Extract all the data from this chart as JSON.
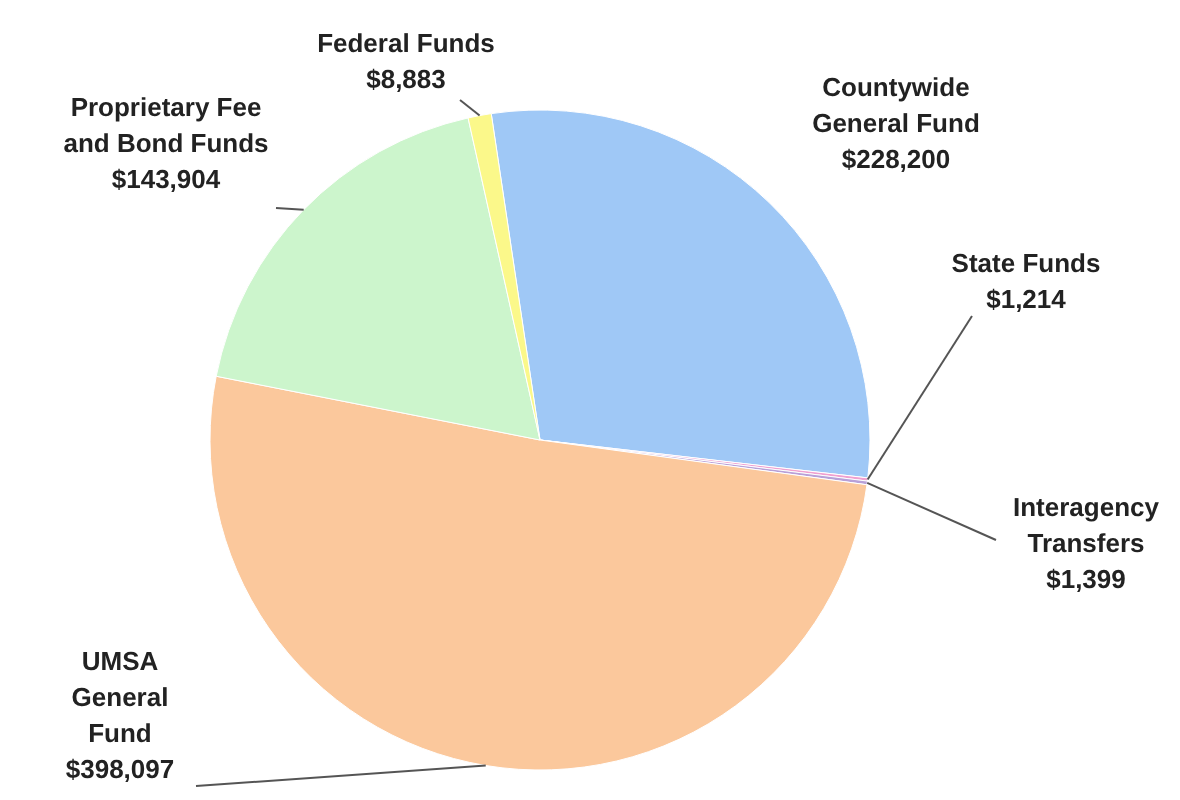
{
  "chart_data": {
    "type": "pie",
    "categories": [
      "Countywide General Fund",
      "State Funds",
      "Interagency Transfers",
      "UMSA General Fund",
      "Proprietary Fee and Bond Funds",
      "Federal Funds"
    ],
    "values": [
      228200,
      1214,
      1399,
      398097,
      143904,
      8883
    ],
    "value_labels": [
      "$228,200",
      "$1,214",
      "$1,399",
      "$398,097",
      "$143,904",
      "$8,883"
    ],
    "colors": [
      "#9fc8f6",
      "#f0a0d0",
      "#b8a0d8",
      "#fbc89c",
      "#ccf5cc",
      "#fbf88a"
    ]
  }
}
